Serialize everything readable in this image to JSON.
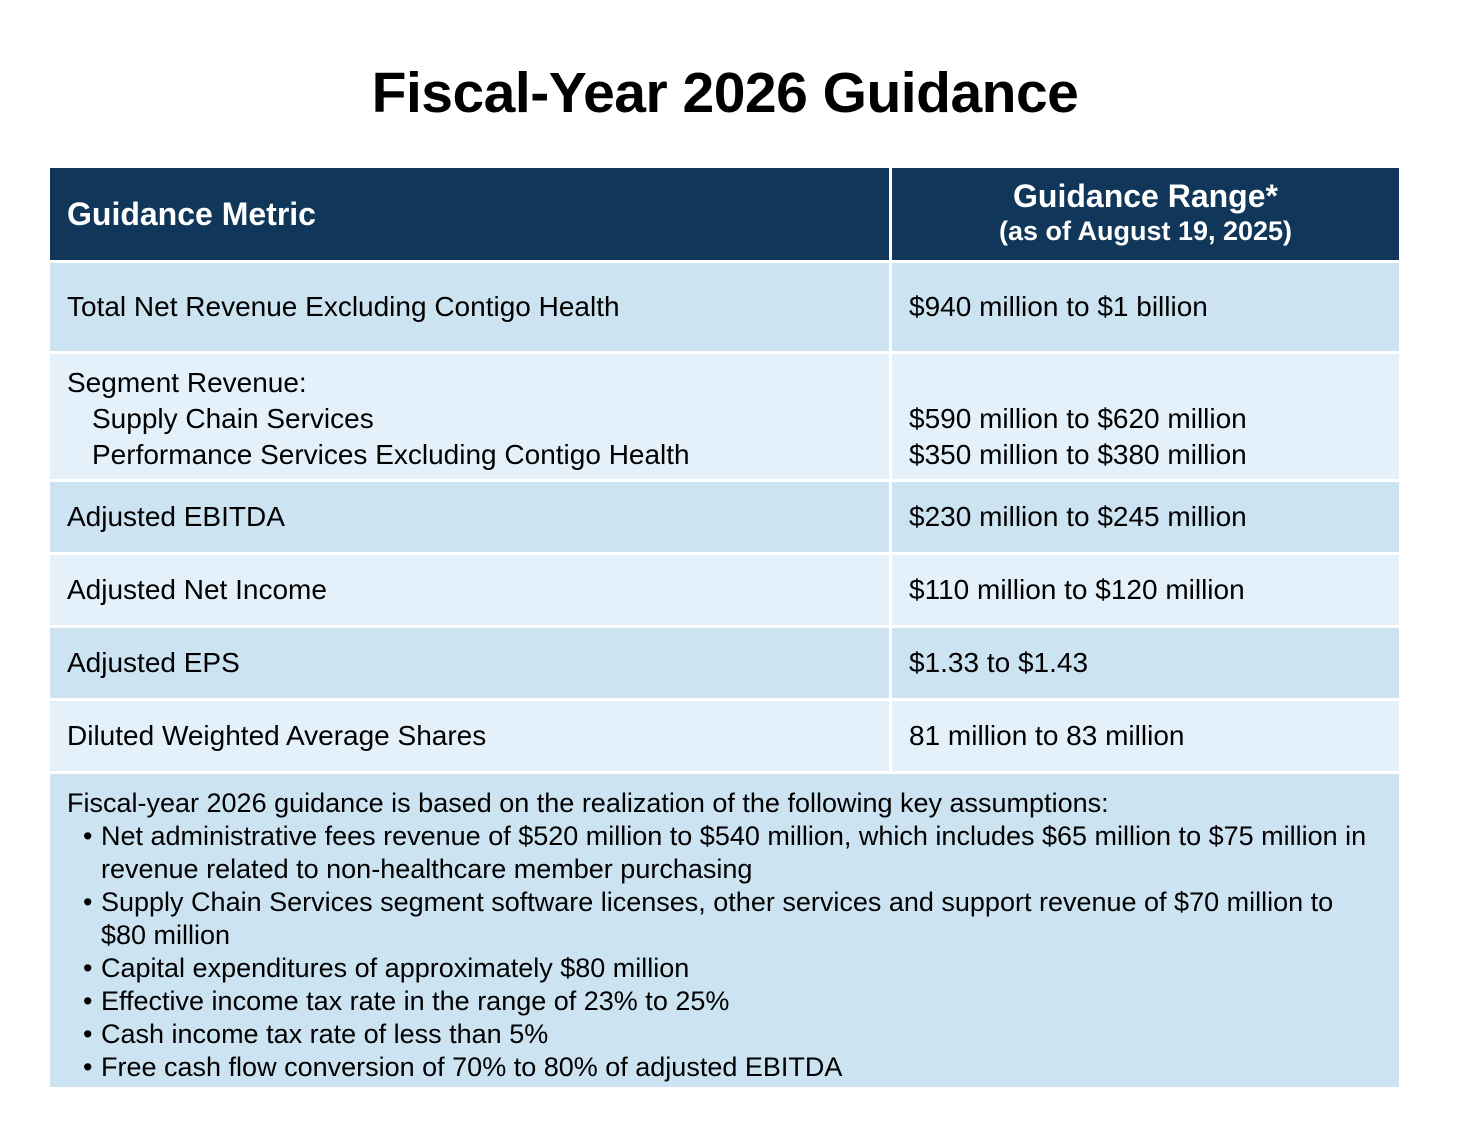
{
  "title": "Fiscal-Year 2026 Guidance",
  "table": {
    "header": {
      "metric": "Guidance Metric",
      "range_main": "Guidance Range*",
      "range_sub": "(as of August 19, 2025)"
    },
    "rows": {
      "total": {
        "metric": "Total Net Revenue Excluding Contigo Health",
        "range": "$940 million to $1 billion"
      },
      "segment": {
        "metric": "Segment Revenue:",
        "sub1_metric": "Supply Chain Services",
        "sub1_range": "$590 million to $620 million",
        "sub2_metric": "Performance Services Excluding Contigo Health",
        "sub2_range": "$350 million to $380 million"
      },
      "ebitda": {
        "metric": "Adjusted EBITDA",
        "range": "$230 million to $245 million"
      },
      "net_income": {
        "metric": "Adjusted Net Income",
        "range": "$110 million to $120 million"
      },
      "eps": {
        "metric": "Adjusted EPS",
        "range": "$1.33 to $1.43"
      },
      "shares": {
        "metric": "Diluted Weighted Average Shares",
        "range": "81 million to 83 million"
      }
    },
    "assumptions": {
      "intro": "Fiscal-year 2026 guidance is based on the realization of the following key assumptions:",
      "bullet_char": "•",
      "items": [
        "Net administrative fees revenue of $520 million to $540 million, which includes $65 million to $75 million in revenue related to non-healthcare member purchasing",
        "Supply Chain Services segment software licenses, other services and support revenue of $70 million to $80 million",
        "Capital expenditures of approximately $80 million",
        "Effective income tax rate in the range of 23% to 25%",
        "Cash income tax rate of less than 5%",
        "Free cash flow conversion of 70% to 80% of adjusted EBITDA"
      ]
    }
  },
  "colors": {
    "header_bg": "#10375a",
    "row_dark": "#cce3f1",
    "row_light": "#e5f1fa",
    "header_text": "#ffffff"
  }
}
